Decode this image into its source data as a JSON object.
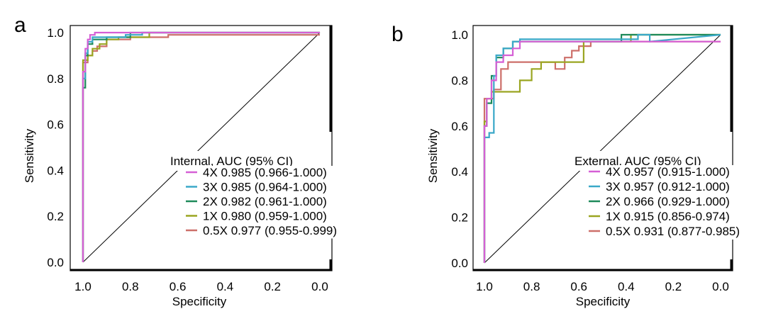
{
  "chart_data": [
    {
      "panel": "a",
      "type": "line",
      "xlabel": "Specificity",
      "ylabel": "Sensitivity",
      "xlim": [
        1.0,
        0.0
      ],
      "ylim": [
        0.0,
        1.0
      ],
      "x_ticks": [
        "1.0",
        "0.8",
        "0.6",
        "0.4",
        "0.2",
        "0.0"
      ],
      "y_ticks": [
        "0.0",
        "0.2",
        "0.4",
        "0.6",
        "0.8",
        "1.0"
      ],
      "legend_title": "Internal, AUC (95% CI)",
      "legend_position": "bottom-right",
      "diagonal": true,
      "series": [
        {
          "name": "4X",
          "label": "4X 0.985 (0.966-1.000)",
          "color": "#d55fd5",
          "x": [
            1.0,
            1.0,
            0.99,
            0.99,
            0.98,
            0.98,
            0.97,
            0.97,
            0.95,
            0.95,
            0.0
          ],
          "y": [
            0.0,
            0.83,
            0.83,
            0.93,
            0.93,
            0.97,
            0.97,
            0.99,
            0.99,
            1.0,
            1.0
          ]
        },
        {
          "name": "3X",
          "label": "3X 0.985 (0.964-1.000)",
          "color": "#3aa8c8",
          "x": [
            1.0,
            1.0,
            0.99,
            0.99,
            0.98,
            0.98,
            0.96,
            0.96,
            0.82,
            0.82,
            0.75,
            0.75,
            0.0
          ],
          "y": [
            0.0,
            0.8,
            0.8,
            0.91,
            0.91,
            0.96,
            0.96,
            0.98,
            0.98,
            0.99,
            0.99,
            1.0,
            1.0
          ]
        },
        {
          "name": "2X",
          "label": "2X 0.982 (0.961-1.000)",
          "color": "#1e8a5a",
          "x": [
            1.0,
            1.0,
            0.99,
            0.99,
            0.98,
            0.98,
            0.96,
            0.96,
            0.9,
            0.9,
            0.8,
            0.8,
            0.0
          ],
          "y": [
            0.0,
            0.76,
            0.76,
            0.9,
            0.9,
            0.95,
            0.95,
            0.97,
            0.97,
            0.98,
            0.98,
            1.0,
            1.0
          ]
        },
        {
          "name": "1X",
          "label": "1X 0.980 (0.959-1.000)",
          "color": "#9aa521",
          "x": [
            1.0,
            1.0,
            0.98,
            0.98,
            0.96,
            0.96,
            0.93,
            0.93,
            0.9,
            0.9,
            0.85,
            0.85,
            0.72,
            0.72,
            0.0
          ],
          "y": [
            0.0,
            0.88,
            0.88,
            0.9,
            0.9,
            0.93,
            0.93,
            0.95,
            0.95,
            0.97,
            0.97,
            0.98,
            0.98,
            1.0,
            1.0
          ]
        },
        {
          "name": "0.5X",
          "label": "0.5X 0.977 (0.955-0.999)",
          "color": "#cd6f6a",
          "x": [
            1.0,
            1.0,
            0.98,
            0.98,
            0.96,
            0.96,
            0.94,
            0.94,
            0.9,
            0.9,
            0.8,
            0.8,
            0.64,
            0.64,
            0.0
          ],
          "y": [
            0.0,
            0.87,
            0.87,
            0.9,
            0.9,
            0.92,
            0.92,
            0.94,
            0.94,
            0.97,
            0.97,
            0.98,
            0.98,
            0.99,
            0.99
          ]
        }
      ]
    },
    {
      "panel": "b",
      "type": "line",
      "xlabel": "Specificity",
      "ylabel": "Sensitivity",
      "xlim": [
        1.0,
        0.0
      ],
      "ylim": [
        0.0,
        1.0
      ],
      "x_ticks": [
        "1.0",
        "0.8",
        "0.6",
        "0.4",
        "0.2",
        "0.0"
      ],
      "y_ticks": [
        "0.0",
        "0.2",
        "0.4",
        "0.6",
        "0.8",
        "1.0"
      ],
      "legend_title": "External, AUC (95% CI)",
      "legend_position": "bottom-right",
      "diagonal": true,
      "series": [
        {
          "name": "4X",
          "label": "4X 0.957 (0.915-1.000)",
          "color": "#d55fd5",
          "x": [
            1.0,
            1.0,
            0.99,
            0.99,
            0.97,
            0.97,
            0.95,
            0.95,
            0.92,
            0.92,
            0.88,
            0.88,
            0.85,
            0.85,
            0.0
          ],
          "y": [
            0.0,
            0.6,
            0.6,
            0.72,
            0.72,
            0.8,
            0.8,
            0.88,
            0.88,
            0.91,
            0.91,
            0.94,
            0.94,
            0.97,
            0.97
          ]
        },
        {
          "name": "3X",
          "label": "3X 0.957 (0.912-1.000)",
          "color": "#3aa8c8",
          "x": [
            1.0,
            1.0,
            0.98,
            0.98,
            0.96,
            0.96,
            0.95,
            0.95,
            0.92,
            0.92,
            0.88,
            0.88,
            0.85,
            0.85,
            0.35,
            0.35,
            0.3,
            0.3,
            0.0
          ],
          "y": [
            0.0,
            0.55,
            0.55,
            0.57,
            0.57,
            0.82,
            0.82,
            0.91,
            0.91,
            0.94,
            0.94,
            0.97,
            0.97,
            0.98,
            0.98,
            1.0,
            1.0,
            0.97,
            1.0
          ]
        },
        {
          "name": "2X",
          "label": "2X 0.966 (0.929-1.000)",
          "color": "#1e8a5a",
          "x": [
            1.0,
            1.0,
            0.99,
            0.99,
            0.97,
            0.97,
            0.95,
            0.95,
            0.92,
            0.92,
            0.88,
            0.88,
            0.42,
            0.42,
            0.0
          ],
          "y": [
            0.0,
            0.6,
            0.6,
            0.7,
            0.7,
            0.82,
            0.82,
            0.9,
            0.9,
            0.94,
            0.94,
            0.97,
            0.97,
            1.0,
            1.0
          ]
        },
        {
          "name": "1X",
          "label": "1X 0.915 (0.856-0.974)",
          "color": "#9aa521",
          "x": [
            1.0,
            1.0,
            0.99,
            0.99,
            0.97,
            0.97,
            0.85,
            0.85,
            0.8,
            0.8,
            0.76,
            0.76,
            0.58,
            0.58,
            0.38,
            0.38,
            0.0
          ],
          "y": [
            0.0,
            0.62,
            0.62,
            0.72,
            0.72,
            0.75,
            0.75,
            0.8,
            0.8,
            0.85,
            0.85,
            0.88,
            0.88,
            0.97,
            0.97,
            1.0,
            1.0
          ]
        },
        {
          "name": "0.5X",
          "label": "0.5X 0.931 (0.877-0.985)",
          "color": "#cd6f6a",
          "x": [
            1.0,
            1.0,
            0.96,
            0.96,
            0.93,
            0.93,
            0.9,
            0.9,
            0.7,
            0.7,
            0.66,
            0.66,
            0.63,
            0.63,
            0.6,
            0.6,
            0.55,
            0.55,
            0.0
          ],
          "y": [
            0.0,
            0.72,
            0.72,
            0.76,
            0.76,
            0.85,
            0.85,
            0.88,
            0.88,
            0.85,
            0.85,
            0.9,
            0.9,
            0.93,
            0.93,
            0.95,
            0.95,
            0.97,
            0.97
          ]
        }
      ]
    }
  ]
}
